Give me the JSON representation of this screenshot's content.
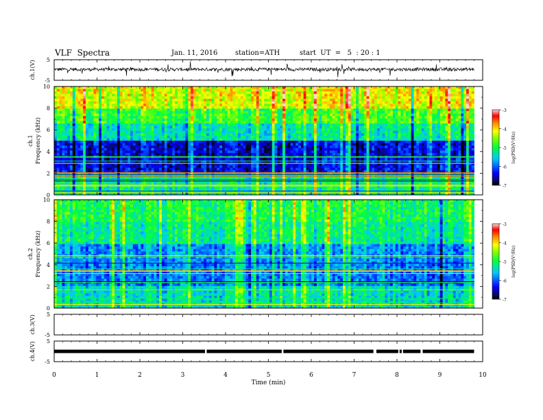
{
  "header": {
    "title": "VLF  Spectra",
    "date": "Jan. 11, 2016",
    "station": "station=ATH",
    "start_ut": "start  UT  =   5  : 20 : 1"
  },
  "chart_data": [
    {
      "type": "line",
      "panel": "ch1-waveform",
      "ylabel": "ch.1(V)",
      "ytick_labels": [
        "5",
        "-5"
      ],
      "ylim": [
        -5,
        5
      ],
      "xlim": [
        0,
        10
      ],
      "x_extent_min": 9.8,
      "mean_level": 0.3
    },
    {
      "type": "heatmap",
      "panel": "ch1-spectrogram",
      "ylabel_lines": [
        "ch.1",
        "Frequency  (kHz)"
      ],
      "ytick_labels": [
        "0",
        "2",
        "4",
        "6",
        "8",
        "10"
      ],
      "ylim": [
        0,
        10
      ],
      "xlim": [
        0,
        10
      ],
      "x_extent_min": 9.8,
      "value_range": [
        -7,
        -3
      ],
      "colorbar": {
        "label": "log(PSD(V²/Hz)",
        "tick_labels": [
          "-3",
          "-4",
          "-5",
          "-6",
          "-7"
        ],
        "range": [
          -7,
          -3
        ]
      },
      "bands_khz": [
        {
          "from": 0,
          "to": 2,
          "level": -5.2
        },
        {
          "from": 2,
          "to": 5,
          "level": -6.4
        },
        {
          "from": 5,
          "to": 6.5,
          "level": -5.3
        },
        {
          "from": 6.5,
          "to": 8,
          "level": -4.8
        },
        {
          "from": 8,
          "to": 10,
          "level": -4.2
        }
      ]
    },
    {
      "type": "heatmap",
      "panel": "ch2-spectrogram",
      "ylabel_lines": [
        "ch.2",
        "Frequency  (kHz)"
      ],
      "ytick_labels": [
        "0",
        "2",
        "4",
        "6",
        "8",
        "10"
      ],
      "ylim": [
        0,
        10
      ],
      "xlim": [
        0,
        10
      ],
      "x_extent_min": 9.8,
      "value_range": [
        -7,
        -3
      ],
      "colorbar": {
        "label": "log(PSD(V²/Hz)",
        "tick_labels": [
          "-3",
          "-4",
          "-5",
          "-6",
          "-7"
        ],
        "range": [
          -7,
          -3
        ]
      },
      "bands_khz": [
        {
          "from": 0,
          "to": 2,
          "level": -5.4
        },
        {
          "from": 2,
          "to": 4,
          "level": -5.9
        },
        {
          "from": 4,
          "to": 6,
          "level": -5.8
        },
        {
          "from": 6,
          "to": 8,
          "level": -5.2
        },
        {
          "from": 8,
          "to": 10,
          "level": -5.0
        }
      ]
    },
    {
      "type": "line",
      "panel": "ch3-waveform",
      "ylabel": "ch.3(V)",
      "ytick_labels": [
        "5",
        "-5"
      ],
      "ylim": [
        -5,
        5
      ],
      "xlim": [
        0,
        10
      ],
      "data": []
    },
    {
      "type": "line",
      "panel": "ch4-waveform",
      "ylabel": "ch.4(V)",
      "ytick_labels": [
        "5",
        "-5"
      ],
      "ylim": [
        -5,
        5
      ],
      "xlim": [
        0,
        10
      ],
      "x_extent_min": 9.8,
      "level": 0,
      "gaps_min": [
        [
          3.52,
          3.56
        ],
        [
          5.31,
          5.35
        ],
        [
          7.45,
          7.52
        ],
        [
          8.03,
          8.06
        ],
        [
          8.11,
          8.14
        ],
        [
          8.55,
          8.6
        ]
      ]
    }
  ],
  "xaxis": {
    "label": "Time  (min)",
    "tick_labels": [
      "0",
      "1",
      "2",
      "3",
      "4",
      "5",
      "6",
      "7",
      "8",
      "9",
      "10"
    ],
    "range": [
      0,
      10
    ]
  }
}
